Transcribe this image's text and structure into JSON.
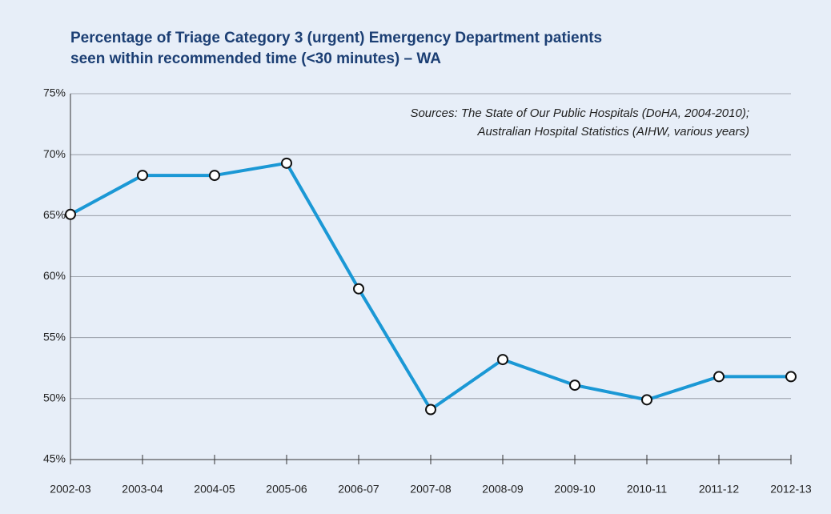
{
  "chart_data": {
    "type": "line",
    "title": [
      "Percentage of Triage Category 3 (urgent) Emergency Department patients",
      "seen within recommended time (<30 minutes) – WA"
    ],
    "annotation": [
      "Sources: The State of Our Public Hospitals (DoHA, 2004-2010);",
      "Australian Hospital Statistics (AIHW, various years)"
    ],
    "categories": [
      "2002-03",
      "2003-04",
      "2004-05",
      "2005-06",
      "2006-07",
      "2007-08",
      "2008-09",
      "2009-10",
      "2010-11",
      "2011-12",
      "2012-13"
    ],
    "series": [
      {
        "color": "#1b98d5",
        "values": [
          65.1,
          68.3,
          68.3,
          69.3,
          59.0,
          49.1,
          53.2,
          51.1,
          49.9,
          51.8,
          51.8
        ]
      }
    ],
    "ylim": [
      45,
      75
    ],
    "yticks": [
      {
        "value": 45,
        "label": "45%"
      },
      {
        "value": 50,
        "label": "50%"
      },
      {
        "value": 55,
        "label": "55%"
      },
      {
        "value": 60,
        "label": "60%"
      },
      {
        "value": 65,
        "label": "65%"
      },
      {
        "value": 70,
        "label": "70%"
      },
      {
        "value": 75,
        "label": "75%"
      }
    ],
    "grid": true
  }
}
